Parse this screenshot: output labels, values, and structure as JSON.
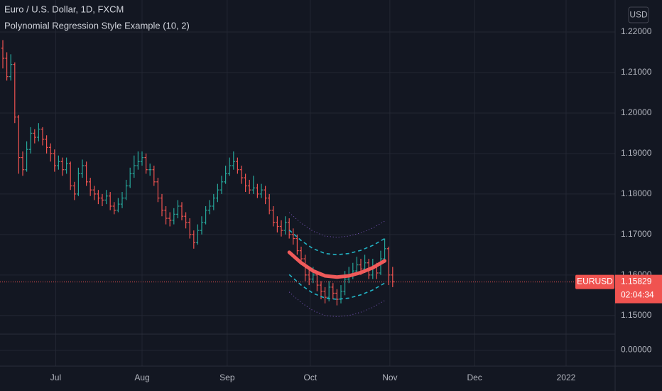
{
  "header": {
    "symbol_title": "Euro / U.S. Dollar, 1D, FXCM",
    "indicator_title": "Polynomial Regression Style Example (10, 2)",
    "currency": "USD"
  },
  "chart_data": {
    "type": "ohlc",
    "categories": [
      null,
      null,
      null,
      null,
      null,
      null,
      null,
      null,
      null,
      null,
      null,
      null,
      null,
      null,
      null,
      null,
      null,
      null,
      null,
      null,
      null,
      null,
      null,
      null,
      null,
      null,
      null,
      null,
      null,
      null,
      null,
      null,
      null,
      null,
      null,
      null,
      null,
      null,
      null,
      null,
      null,
      null,
      null,
      null,
      null,
      null,
      null,
      null,
      null,
      null,
      null,
      null,
      null,
      null,
      null,
      null,
      null,
      null,
      null,
      null,
      null,
      null,
      null,
      null,
      null,
      null,
      null,
      null,
      null,
      null,
      null,
      null,
      null,
      null,
      null,
      null,
      null,
      null,
      null,
      null,
      null,
      null,
      null,
      null,
      null,
      null,
      null,
      null,
      null,
      null,
      null,
      null,
      null,
      null,
      null,
      null,
      null,
      null,
      null
    ],
    "open": [
      1.216,
      1.2135,
      1.209,
      1.212,
      1.199,
      1.189,
      1.186,
      1.191,
      1.195,
      1.194,
      1.196,
      1.1935,
      1.1915,
      1.19,
      1.187,
      1.188,
      1.186,
      1.1875,
      1.182,
      1.18,
      1.185,
      1.187,
      1.183,
      1.181,
      1.18,
      1.179,
      1.1785,
      1.1795,
      1.177,
      1.176,
      1.1775,
      1.179,
      1.182,
      1.185,
      1.187,
      1.188,
      1.189,
      1.186,
      1.186,
      1.183,
      1.179,
      1.176,
      1.174,
      1.1735,
      1.175,
      1.177,
      1.1745,
      1.173,
      1.17,
      1.168,
      1.171,
      1.173,
      1.176,
      1.177,
      1.179,
      1.181,
      1.183,
      1.185,
      1.187,
      1.188,
      1.186,
      1.184,
      1.182,
      1.181,
      1.1815,
      1.18,
      1.181,
      1.179,
      1.176,
      1.173,
      1.172,
      1.171,
      1.173,
      1.17,
      1.169,
      1.166,
      1.164,
      1.16,
      1.159,
      1.16,
      1.1575,
      1.156,
      1.1545,
      1.157,
      1.1555,
      1.154,
      1.156,
      1.159,
      1.16,
      1.161,
      1.1625,
      1.1615,
      1.163,
      1.16,
      1.162,
      1.1605,
      1.164,
      1.1665,
      1.16
    ],
    "high": [
      1.218,
      1.215,
      1.2145,
      1.2125,
      1.1995,
      1.1905,
      1.193,
      1.1965,
      1.196,
      1.1975,
      1.1965,
      1.1945,
      1.1925,
      1.191,
      1.1895,
      1.189,
      1.189,
      1.188,
      1.183,
      1.1865,
      1.1885,
      1.188,
      1.184,
      1.182,
      1.181,
      1.18,
      1.181,
      1.1805,
      1.178,
      1.179,
      1.1805,
      1.1835,
      1.1865,
      1.1895,
      1.1905,
      1.1905,
      1.19,
      1.1875,
      1.187,
      1.184,
      1.18,
      1.177,
      1.1755,
      1.1765,
      1.1785,
      1.178,
      1.1755,
      1.174,
      1.171,
      1.1725,
      1.1745,
      1.177,
      1.1785,
      1.18,
      1.1825,
      1.1845,
      1.187,
      1.189,
      1.1905,
      1.189,
      1.187,
      1.185,
      1.1835,
      1.1845,
      1.1825,
      1.1825,
      1.182,
      1.18,
      1.177,
      1.1745,
      1.1735,
      1.1745,
      1.174,
      1.1715,
      1.17,
      1.167,
      1.165,
      1.1615,
      1.162,
      1.161,
      1.1585,
      1.157,
      1.1585,
      1.158,
      1.1565,
      1.1575,
      1.161,
      1.162,
      1.163,
      1.1645,
      1.164,
      1.165,
      1.164,
      1.164,
      1.163,
      1.166,
      1.169,
      1.167,
      1.162
    ],
    "low": [
      1.211,
      1.208,
      1.208,
      1.1975,
      1.185,
      1.1845,
      1.1855,
      1.19,
      1.1925,
      1.193,
      1.192,
      1.19,
      1.188,
      1.1855,
      1.186,
      1.1845,
      1.185,
      1.181,
      1.1785,
      1.1795,
      1.184,
      1.182,
      1.1795,
      1.1785,
      1.1775,
      1.177,
      1.1775,
      1.176,
      1.175,
      1.1755,
      1.1765,
      1.1785,
      1.1815,
      1.184,
      1.186,
      1.187,
      1.185,
      1.1845,
      1.182,
      1.178,
      1.1745,
      1.1725,
      1.172,
      1.1725,
      1.174,
      1.1735,
      1.1715,
      1.169,
      1.1665,
      1.1675,
      1.17,
      1.1725,
      1.175,
      1.176,
      1.178,
      1.18,
      1.1825,
      1.1845,
      1.186,
      1.185,
      1.1825,
      1.1805,
      1.18,
      1.18,
      1.179,
      1.179,
      1.1775,
      1.175,
      1.172,
      1.1705,
      1.1695,
      1.17,
      1.169,
      1.1675,
      1.165,
      1.1625,
      1.1585,
      1.1575,
      1.158,
      1.156,
      1.154,
      1.153,
      1.1535,
      1.154,
      1.1525,
      1.153,
      1.155,
      1.158,
      1.159,
      1.16,
      1.16,
      1.1605,
      1.159,
      1.159,
      1.159,
      1.16,
      1.163,
      1.1575,
      1.157
    ],
    "close": [
      1.2135,
      1.209,
      1.212,
      1.199,
      1.189,
      1.186,
      1.191,
      1.195,
      1.194,
      1.196,
      1.1935,
      1.1915,
      1.19,
      1.187,
      1.188,
      1.186,
      1.1875,
      1.182,
      1.18,
      1.185,
      1.187,
      1.183,
      1.181,
      1.18,
      1.179,
      1.1785,
      1.1795,
      1.177,
      1.176,
      1.1775,
      1.179,
      1.182,
      1.185,
      1.187,
      1.188,
      1.189,
      1.186,
      1.186,
      1.183,
      1.179,
      1.176,
      1.174,
      1.1735,
      1.175,
      1.177,
      1.1745,
      1.173,
      1.17,
      1.168,
      1.171,
      1.173,
      1.176,
      1.177,
      1.179,
      1.181,
      1.183,
      1.185,
      1.187,
      1.188,
      1.186,
      1.184,
      1.182,
      1.181,
      1.1815,
      1.18,
      1.181,
      1.179,
      1.176,
      1.173,
      1.172,
      1.171,
      1.173,
      1.17,
      1.169,
      1.166,
      1.164,
      1.16,
      1.159,
      1.16,
      1.1575,
      1.156,
      1.1545,
      1.157,
      1.1555,
      1.154,
      1.156,
      1.159,
      1.16,
      1.161,
      1.1625,
      1.1615,
      1.163,
      1.16,
      1.162,
      1.1605,
      1.164,
      1.1665,
      1.16,
      1.1583
    ],
    "up_color": "#26a69a",
    "down_color": "#ef5350",
    "xlim": [
      -0.714,
      153.93
    ],
    "xticks": [
      {
        "value": 13.3,
        "label": "Jul"
      },
      {
        "value": 35,
        "label": "Aug"
      },
      {
        "value": 56.4,
        "label": "Sep"
      },
      {
        "value": 77.3,
        "label": "Oct"
      },
      {
        "value": 97.3,
        "label": "Nov"
      },
      {
        "value": 118.6,
        "label": "Dec"
      },
      {
        "value": 141.6,
        "label": "2022"
      }
    ],
    "ylim": [
      1.1454,
      1.2279
    ],
    "yticks": [
      {
        "value": 1.15,
        "label": "1.15000"
      },
      {
        "value": 1.16,
        "label": "1.16000"
      },
      {
        "value": 1.17,
        "label": "1.17000"
      },
      {
        "value": 1.18,
        "label": "1.18000"
      },
      {
        "value": 1.19,
        "label": "1.19000"
      },
      {
        "value": 1.2,
        "label": "1.20000"
      },
      {
        "value": 1.21,
        "label": "1.21000"
      },
      {
        "value": 1.22,
        "label": "1.22000"
      }
    ],
    "grid": true,
    "regression": {
      "x": [
        72,
        75,
        78,
        81,
        84,
        87,
        90,
        93,
        96
      ],
      "center": [
        1.1656,
        1.163,
        1.161,
        1.1598,
        1.1595,
        1.1598,
        1.1606,
        1.1618,
        1.1635
      ],
      "upper_inner": [
        1.1711,
        1.1685,
        1.1665,
        1.1653,
        1.165,
        1.1653,
        1.1661,
        1.1673,
        1.169
      ],
      "lower_inner": [
        1.1601,
        1.1575,
        1.1555,
        1.1543,
        1.154,
        1.1543,
        1.1551,
        1.1563,
        1.158
      ],
      "upper_outer": [
        1.1754,
        1.1728,
        1.1708,
        1.1696,
        1.1693,
        1.1696,
        1.1704,
        1.1716,
        1.1733
      ],
      "lower_outer": [
        1.1558,
        1.1532,
        1.1512,
        1.15,
        1.1497,
        1.15,
        1.1508,
        1.152,
        1.1537
      ],
      "center_color": "#f05a5a",
      "inner_color": "#22b3c4",
      "outer_color": "#7e57c2"
    },
    "last_price": {
      "symbol": "EURUSD",
      "value": 1.15829,
      "label": "1.15829",
      "countdown": "02:04:34",
      "color": "#f05350"
    },
    "indicator_pane": {
      "ylim": [
        -1,
        1
      ],
      "yticks": [
        {
          "value": 0,
          "label": "0.00000"
        }
      ]
    }
  }
}
